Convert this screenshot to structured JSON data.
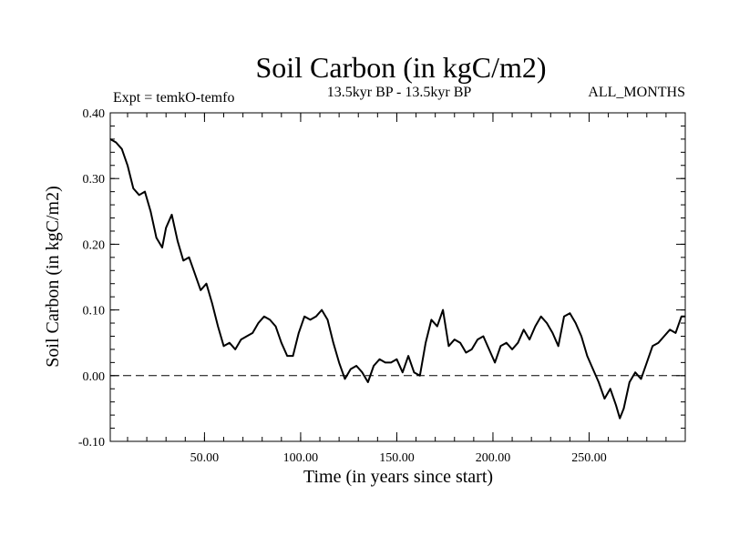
{
  "chart_data": {
    "type": "line",
    "title": "Soil Carbon (in kgC/m2)",
    "subtitle": "13.5kyr BP - 13.5kyr BP",
    "experiment_label": "Expt = temkO-temfo",
    "period_label": "ALL_MONTHS",
    "xlabel": "Time (in years since start)",
    "ylabel": "Soil Carbon (in kgC/m2)",
    "xlim": [
      1,
      300
    ],
    "ylim": [
      -0.1,
      0.4
    ],
    "x_ticks": [
      50,
      100,
      150,
      200,
      250
    ],
    "x_tick_labels": [
      "50.00",
      "100.00",
      "150.00",
      "200.00",
      "250.00"
    ],
    "y_ticks": [
      -0.1,
      0.0,
      0.1,
      0.2,
      0.3,
      0.4
    ],
    "y_tick_labels": [
      "-0.10",
      "0.00",
      "0.10",
      "0.20",
      "0.30",
      "0.40"
    ],
    "reference_line": {
      "y": 0.0,
      "style": "dashed"
    },
    "series": [
      {
        "name": "Soil Carbon",
        "x": [
          1,
          4,
          7,
          10,
          13,
          16,
          19,
          22,
          25,
          28,
          30,
          33,
          36,
          39,
          42,
          45,
          48,
          51,
          54,
          57,
          60,
          63,
          66,
          69,
          72,
          75,
          78,
          81,
          84,
          87,
          90,
          93,
          96,
          99,
          102,
          105,
          108,
          111,
          114,
          117,
          120,
          123,
          126,
          129,
          132,
          135,
          138,
          141,
          144,
          147,
          150,
          153,
          156,
          159,
          162,
          165,
          168,
          171,
          174,
          177,
          180,
          183,
          186,
          189,
          192,
          195,
          198,
          201,
          204,
          207,
          210,
          213,
          216,
          219,
          222,
          225,
          228,
          231,
          234,
          237,
          240,
          243,
          246,
          249,
          252,
          255,
          258,
          261,
          264,
          266,
          268,
          271,
          274,
          277,
          280,
          283,
          286,
          289,
          292,
          295,
          298,
          300
        ],
        "values": [
          0.36,
          0.355,
          0.345,
          0.32,
          0.285,
          0.275,
          0.28,
          0.25,
          0.21,
          0.195,
          0.225,
          0.245,
          0.205,
          0.175,
          0.18,
          0.155,
          0.13,
          0.14,
          0.11,
          0.075,
          0.045,
          0.05,
          0.04,
          0.055,
          0.06,
          0.065,
          0.08,
          0.09,
          0.085,
          0.075,
          0.05,
          0.03,
          0.03,
          0.065,
          0.09,
          0.085,
          0.09,
          0.1,
          0.085,
          0.05,
          0.02,
          -0.005,
          0.01,
          0.015,
          0.005,
          -0.01,
          0.015,
          0.025,
          0.02,
          0.02,
          0.025,
          0.005,
          0.03,
          0.005,
          0.0,
          0.05,
          0.085,
          0.075,
          0.1,
          0.045,
          0.055,
          0.05,
          0.035,
          0.04,
          0.055,
          0.06,
          0.04,
          0.02,
          0.045,
          0.05,
          0.04,
          0.05,
          0.07,
          0.055,
          0.075,
          0.09,
          0.08,
          0.065,
          0.045,
          0.09,
          0.095,
          0.08,
          0.06,
          0.03,
          0.01,
          -0.01,
          -0.035,
          -0.02,
          -0.045,
          -0.065,
          -0.05,
          -0.01,
          0.005,
          -0.005,
          0.02,
          0.045,
          0.05,
          0.06,
          0.07,
          0.065,
          0.09,
          0.09
        ]
      }
    ]
  }
}
